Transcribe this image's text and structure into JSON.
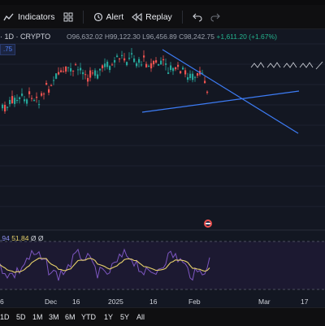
{
  "toolbar": {
    "indicators_label": "Indicators",
    "alert_label": "Alert",
    "replay_label": "Replay",
    "icons": [
      "indicators-icon",
      "templates-icon",
      "alert-icon",
      "replay-icon",
      "undo-icon",
      "redo-icon"
    ]
  },
  "chart": {
    "symbol": "· 1D · CRYPTO",
    "ohlc": {
      "open": "O96,632.02",
      "high": "H99,122.30",
      "low": "L96,456.89",
      "close": "C98,242.75",
      "change": "+1,611.20 (+1.67%)"
    },
    "tag_value": ".75"
  },
  "oscillator": {
    "value_a": ".94",
    "value_b": "51.84",
    "value_c": "Ø",
    "value_d": "Ø"
  },
  "time_axis": {
    "labels": [
      "6",
      "Dec",
      "16",
      "2025",
      "16",
      "Feb",
      "Mar",
      "17"
    ]
  },
  "bottom_bar": {
    "ranges": [
      "1D",
      "5D",
      "1M",
      "3M",
      "6M",
      "YTD",
      "1Y",
      "5Y",
      "All"
    ]
  },
  "colors": {
    "up": "#26a69a",
    "down": "#ef5350",
    "trendline": "#3d7cf5",
    "oscillator_line": "#7e57c2",
    "signal_line": "#e7d16b",
    "background": "#131722"
  }
}
